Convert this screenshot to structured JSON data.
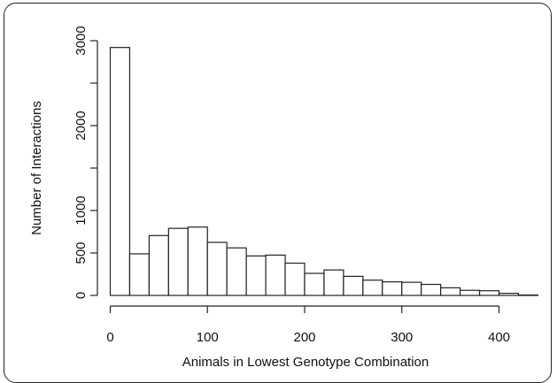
{
  "chart_data": {
    "type": "bar",
    "xlabel": "Animals in Lowest Genotype Combination",
    "ylabel": "Number of Interactions",
    "xlim": [
      0,
      440
    ],
    "ylim": [
      0,
      3000
    ],
    "x_ticks": [
      0,
      100,
      200,
      300,
      400
    ],
    "y_ticks": [
      0,
      500,
      1000,
      2000,
      3000
    ],
    "grid": false,
    "bin_width": 20,
    "bins": [
      {
        "x0": 0,
        "x1": 20,
        "value": 2920
      },
      {
        "x0": 20,
        "x1": 40,
        "value": 490
      },
      {
        "x0": 40,
        "x1": 60,
        "value": 705
      },
      {
        "x0": 60,
        "x1": 80,
        "value": 790
      },
      {
        "x0": 80,
        "x1": 100,
        "value": 805
      },
      {
        "x0": 100,
        "x1": 120,
        "value": 625
      },
      {
        "x0": 120,
        "x1": 140,
        "value": 560
      },
      {
        "x0": 140,
        "x1": 160,
        "value": 465
      },
      {
        "x0": 160,
        "x1": 180,
        "value": 475
      },
      {
        "x0": 180,
        "x1": 200,
        "value": 380
      },
      {
        "x0": 200,
        "x1": 220,
        "value": 260
      },
      {
        "x0": 220,
        "x1": 240,
        "value": 300
      },
      {
        "x0": 240,
        "x1": 260,
        "value": 225
      },
      {
        "x0": 260,
        "x1": 280,
        "value": 180
      },
      {
        "x0": 280,
        "x1": 300,
        "value": 160
      },
      {
        "x0": 300,
        "x1": 320,
        "value": 155
      },
      {
        "x0": 320,
        "x1": 340,
        "value": 130
      },
      {
        "x0": 340,
        "x1": 360,
        "value": 90
      },
      {
        "x0": 360,
        "x1": 380,
        "value": 60
      },
      {
        "x0": 380,
        "x1": 400,
        "value": 55
      },
      {
        "x0": 400,
        "x1": 420,
        "value": 25
      },
      {
        "x0": 420,
        "x1": 440,
        "value": 5
      }
    ]
  }
}
